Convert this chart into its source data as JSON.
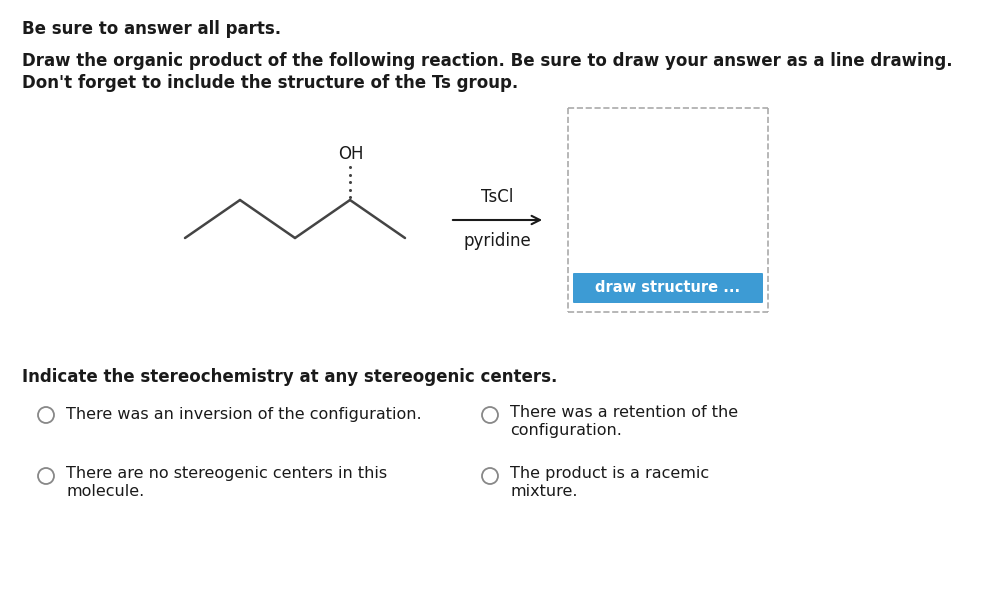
{
  "title_line1": "Be sure to answer all parts.",
  "title_line2": "Draw the organic product of the following reaction. Be sure to draw your answer as a line drawing.",
  "title_line3": "Don't forget to include the structure of the Ts group.",
  "reagent_line1": "TsCl",
  "reagent_line2": "pyridine",
  "oh_label": "OH",
  "draw_button_text": "draw structure ...",
  "draw_button_color": "#3d9bd4",
  "draw_button_text_color": "#ffffff",
  "indicate_text": "Indicate the stereochemistry at any stereogenic centers.",
  "option1": "There was an inversion of the configuration.",
  "option2_line1": "There was a retention of the",
  "option2_line2": "configuration.",
  "option3_line1": "There are no stereogenic centers in this",
  "option3_line2": "molecule.",
  "option4_line1": "The product is a racemic",
  "option4_line2": "mixture.",
  "bg_color": "#ffffff",
  "text_color": "#1a1a1a",
  "line_color": "#444444",
  "dashed_box_color": "#aaaaaa",
  "figsize": [
    9.86,
    6.08
  ],
  "dpi": 100
}
